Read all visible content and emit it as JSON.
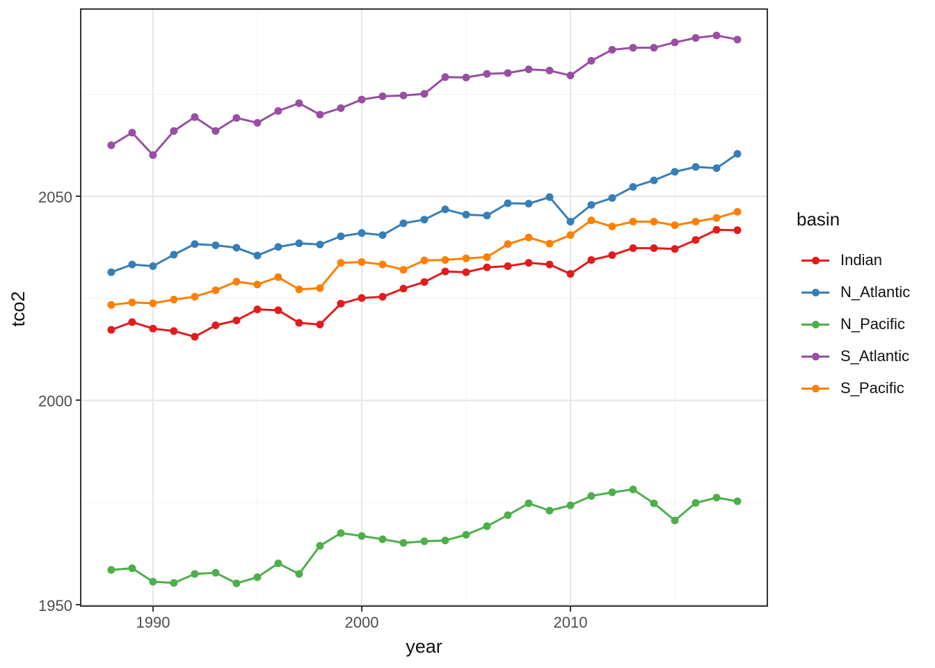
{
  "chart_data": {
    "type": "line",
    "title": "",
    "xlabel": "year",
    "ylabel": "tco2",
    "grid": true,
    "xlim": [
      1986.57,
      2019.4
    ],
    "ylim": [
      1949.8,
      2095.7
    ],
    "x": [
      1988,
      1989,
      1990,
      1991,
      1992,
      1993,
      1994,
      1995,
      1996,
      1997,
      1998,
      1999,
      2000,
      2001,
      2002,
      2003,
      2004,
      2005,
      2006,
      2007,
      2008,
      2009,
      2010,
      2011,
      2012,
      2013,
      2014,
      2015,
      2016,
      2017,
      2018
    ],
    "series": [
      {
        "name": "Indian",
        "color": "#E41A1C",
        "values": [
          2017.3,
          2019.2,
          2017.6,
          2017.0,
          2015.6,
          2018.4,
          2019.6,
          2022.3,
          2022.1,
          2019.0,
          2018.6,
          2023.7,
          2025.1,
          2025.4,
          2027.4,
          2029.0,
          2031.6,
          2031.4,
          2032.6,
          2032.9,
          2033.7,
          2033.3,
          2031.0,
          2034.4,
          2035.6,
          2037.3,
          2037.3,
          2037.1,
          2039.3,
          2041.8,
          2041.7
        ]
      },
      {
        "name": "N_Atlantic",
        "color": "#377EB8",
        "values": [
          2031.4,
          2033.3,
          2032.9,
          2035.7,
          2038.3,
          2038.0,
          2037.4,
          2035.5,
          2037.6,
          2038.5,
          2038.2,
          2040.2,
          2041.0,
          2040.5,
          2043.4,
          2044.3,
          2046.8,
          2045.5,
          2045.3,
          2048.3,
          2048.2,
          2049.8,
          2043.8,
          2047.9,
          2049.6,
          2052.3,
          2053.9,
          2056.0,
          2057.2,
          2056.9,
          2060.4
        ]
      },
      {
        "name": "N_Pacific",
        "color": "#4DAF4A",
        "values": [
          1958.5,
          1958.9,
          1955.6,
          1955.3,
          1957.5,
          1957.8,
          1955.2,
          1956.7,
          1960.1,
          1957.5,
          1964.4,
          1967.5,
          1966.8,
          1966.0,
          1965.1,
          1965.5,
          1965.7,
          1967.1,
          1969.2,
          1971.9,
          1974.8,
          1973.0,
          1974.3,
          1976.6,
          1977.5,
          1978.2,
          1974.8,
          1970.6,
          1974.9,
          1976.2,
          1975.3
        ]
      },
      {
        "name": "S_Atlantic",
        "color": "#984EA3",
        "values": [
          2062.5,
          2065.6,
          2060.1,
          2066.0,
          2069.4,
          2066.0,
          2069.2,
          2068.0,
          2070.9,
          2072.8,
          2070.0,
          2071.6,
          2073.7,
          2074.5,
          2074.7,
          2075.1,
          2079.2,
          2079.1,
          2080.0,
          2080.2,
          2081.1,
          2080.8,
          2079.6,
          2083.2,
          2085.9,
          2086.4,
          2086.4,
          2087.7,
          2088.8,
          2089.4,
          2088.4
        ]
      },
      {
        "name": "S_Pacific",
        "color": "#FF7F00",
        "values": [
          2023.4,
          2024.0,
          2023.8,
          2024.7,
          2025.4,
          2027.0,
          2029.1,
          2028.4,
          2030.2,
          2027.2,
          2027.5,
          2033.7,
          2033.9,
          2033.3,
          2032.0,
          2034.3,
          2034.4,
          2034.8,
          2035.1,
          2038.3,
          2039.9,
          2038.4,
          2040.5,
          2044.1,
          2042.6,
          2043.8,
          2043.8,
          2042.9,
          2043.8,
          2044.7,
          2046.2
        ]
      }
    ],
    "x_ticks": [
      {
        "value": 1990,
        "label": "1990"
      },
      {
        "value": 2000,
        "label": "2000"
      },
      {
        "value": 2010,
        "label": "2010"
      }
    ],
    "y_ticks": [
      {
        "value": 1950,
        "label": "1950"
      },
      {
        "value": 2000,
        "label": "2000"
      },
      {
        "value": 2050,
        "label": "2050"
      }
    ],
    "x_minor": [
      1995,
      2005,
      2015
    ],
    "y_minor": [
      1975,
      2025,
      2075
    ],
    "legend": {
      "title": "basin",
      "position": "right"
    },
    "style": {
      "background": "#ffffff",
      "grid_major": "#e6e6e6",
      "grid_minor": "#f2f2f2",
      "panel_border": "#333333",
      "tick_color": "#333333",
      "tick_label_color": "#4d4d4d",
      "text_color": "#111111",
      "point_radius": 5.5,
      "line_width": 3
    }
  }
}
